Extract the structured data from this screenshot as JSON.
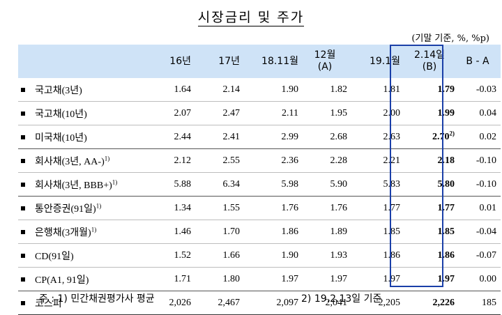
{
  "title": "시장금리 및 주가",
  "unit": "(기말 기준, %, %p)",
  "headers": {
    "c1": "16년",
    "c2": "17년",
    "c3": "18.11월",
    "c4a": "12월",
    "c4b": "(A)",
    "c5": "19.1월",
    "c6a": "2.14일",
    "c6b": "(B)",
    "c7": "B - A"
  },
  "rows": [
    {
      "label": "국고채(3년)",
      "sup": "",
      "v": [
        "1.64",
        "2.14",
        "1.90",
        "1.82",
        "1.81"
      ],
      "b": "1.79",
      "bsup": "",
      "d": "-0.03"
    },
    {
      "label": "국고채(10년)",
      "sup": "",
      "v": [
        "2.07",
        "2.47",
        "2.11",
        "1.95",
        "2.00"
      ],
      "b": "1.99",
      "bsup": "",
      "d": "0.04"
    },
    {
      "label": "미국채(10년)",
      "sup": "",
      "v": [
        "2.44",
        "2.41",
        "2.99",
        "2.68",
        "2.63"
      ],
      "b": "2.70",
      "bsup": "2)",
      "d": "0.02"
    },
    {
      "label": "회사채(3년, AA-)",
      "sup": "1)",
      "v": [
        "2.12",
        "2.55",
        "2.36",
        "2.28",
        "2.21"
      ],
      "b": "2.18",
      "bsup": "",
      "d": "-0.10"
    },
    {
      "label": "회사채(3년, BBB+)",
      "sup": "1)",
      "v": [
        "5.88",
        "6.34",
        "5.98",
        "5.90",
        "5.83"
      ],
      "b": "5.80",
      "bsup": "",
      "d": "-0.10"
    },
    {
      "label": "통안증권(91일)",
      "sup": "1)",
      "v": [
        "1.34",
        "1.55",
        "1.76",
        "1.76",
        "1.77"
      ],
      "b": "1.77",
      "bsup": "",
      "d": "0.01"
    },
    {
      "label": "은행채(3개월)",
      "sup": "1)",
      "v": [
        "1.46",
        "1.70",
        "1.86",
        "1.89",
        "1.85"
      ],
      "b": "1.85",
      "bsup": "",
      "d": "-0.04"
    },
    {
      "label": "CD(91일)",
      "sup": "",
      "v": [
        "1.52",
        "1.66",
        "1.90",
        "1.93",
        "1.86"
      ],
      "b": "1.86",
      "bsup": "",
      "d": "-0.07"
    },
    {
      "label": "CP(A1, 91일)",
      "sup": "",
      "v": [
        "1.71",
        "1.80",
        "1.97",
        "1.97",
        "1.97"
      ],
      "b": "1.97",
      "bsup": "",
      "d": "0.00"
    },
    {
      "label": "코스피",
      "sup": "",
      "v": [
        "2,026",
        "2,467",
        "2,097",
        "2,041",
        "2,205"
      ],
      "b": "2,226",
      "bsup": "",
      "d": "185"
    }
  ],
  "notes": {
    "n1": "주 : 1) 민간채권평가사 평균",
    "n2": "2) 19.2.13일 기준"
  }
}
